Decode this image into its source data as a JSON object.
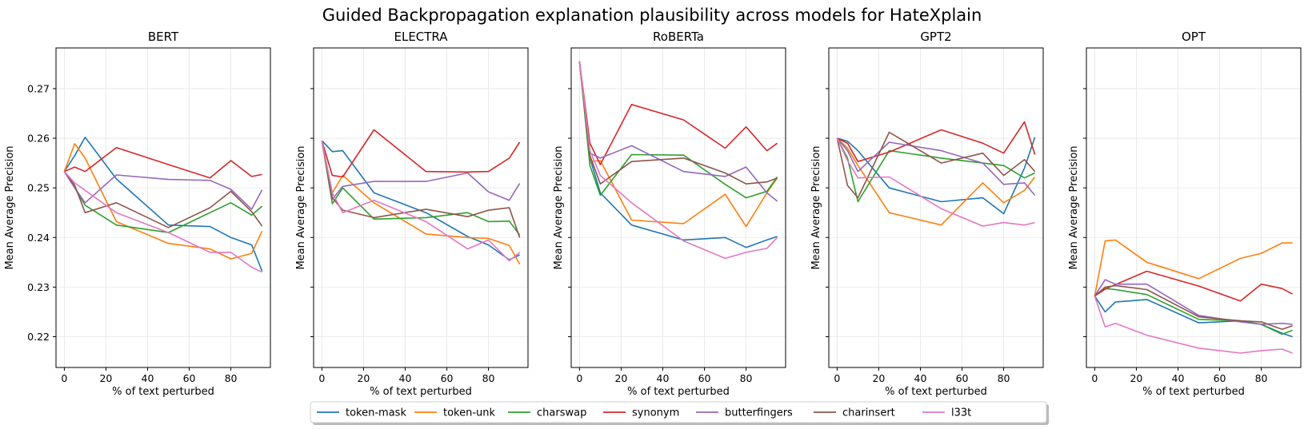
{
  "suptitle": "Guided Backpropagation explanation plausibility across models for HateXplain",
  "chart_data": {
    "type": "line",
    "x": [
      0,
      5,
      10,
      25,
      50,
      70,
      80,
      90,
      95
    ],
    "xlabel": "% of text perturbed",
    "ylabel": "Mean Average Precision",
    "xticks": [
      0,
      20,
      40,
      60,
      80
    ],
    "yticks": [
      0.22,
      0.23,
      0.24,
      0.25,
      0.26,
      0.27
    ],
    "xlim": [
      -4,
      99
    ],
    "ylim": [
      0.2138,
      0.2782
    ],
    "grid": true,
    "legend_position": "bottom-center",
    "colors": {
      "token-mask": "#1f77b4",
      "token-unk": "#ff7f0e",
      "charswap": "#2ca02c",
      "synonym": "#d62728",
      "butterfingers": "#9467bd",
      "charinsert": "#8c564b",
      "l33t": "#e377c2"
    },
    "legend": [
      "token-mask",
      "token-unk",
      "charswap",
      "synonym",
      "butterfingers",
      "charinsert",
      "l33t"
    ],
    "panels": [
      {
        "title": "BERT",
        "series": [
          {
            "name": "token-mask",
            "values": [
              0.2533,
              0.2565,
              0.2602,
              0.2518,
              0.2425,
              0.2422,
              0.24,
              0.2385,
              0.2332
            ]
          },
          {
            "name": "token-unk",
            "values": [
              0.2533,
              0.2589,
              0.256,
              0.2432,
              0.2388,
              0.2377,
              0.2357,
              0.2368,
              0.2413
            ]
          },
          {
            "name": "charswap",
            "values": [
              0.2533,
              0.25,
              0.2465,
              0.2425,
              0.241,
              0.245,
              0.247,
              0.2445,
              0.2463
            ]
          },
          {
            "name": "synonym",
            "values": [
              0.2533,
              0.2542,
              0.2533,
              0.2581,
              0.2547,
              0.252,
              0.2555,
              0.2523,
              0.2527
            ]
          },
          {
            "name": "butterfingers",
            "values": [
              0.2533,
              0.25,
              0.247,
              0.2526,
              0.2517,
              0.2515,
              0.2497,
              0.2457,
              0.2496
            ]
          },
          {
            "name": "charinsert",
            "values": [
              0.2533,
              0.2505,
              0.245,
              0.247,
              0.242,
              0.246,
              0.2493,
              0.2452,
              0.2423
            ]
          },
          {
            "name": "l33t",
            "values": [
              0.2533,
              0.251,
              0.2495,
              0.245,
              0.241,
              0.237,
              0.237,
              0.234,
              0.233
            ]
          }
        ]
      },
      {
        "title": "ELECTRA",
        "series": [
          {
            "name": "token-mask",
            "values": [
              0.2595,
              0.2573,
              0.2575,
              0.249,
              0.245,
              0.2402,
              0.2385,
              0.2355,
              0.2365
            ]
          },
          {
            "name": "token-unk",
            "values": [
              0.2595,
              0.249,
              0.2525,
              0.247,
              0.2407,
              0.24,
              0.2398,
              0.2384,
              0.2346
            ]
          },
          {
            "name": "charswap",
            "values": [
              0.2595,
              0.2468,
              0.25,
              0.2437,
              0.244,
              0.245,
              0.2432,
              0.2433,
              0.2405
            ]
          },
          {
            "name": "synonym",
            "values": [
              0.2595,
              0.2525,
              0.2522,
              0.2617,
              0.2533,
              0.2532,
              0.2533,
              0.256,
              0.2592
            ]
          },
          {
            "name": "butterfingers",
            "values": [
              0.2595,
              0.2477,
              0.2503,
              0.2513,
              0.2513,
              0.253,
              0.2492,
              0.2475,
              0.2509
            ]
          },
          {
            "name": "charinsert",
            "values": [
              0.2595,
              0.248,
              0.2455,
              0.244,
              0.2457,
              0.2442,
              0.2455,
              0.246,
              0.24
            ]
          },
          {
            "name": "l33t",
            "values": [
              0.2595,
              0.249,
              0.245,
              0.2475,
              0.2432,
              0.2377,
              0.2395,
              0.2353,
              0.237
            ]
          }
        ]
      },
      {
        "title": "RoBERTa",
        "series": [
          {
            "name": "token-mask",
            "values": [
              0.2755,
              0.256,
              0.249,
              0.2425,
              0.2395,
              0.24,
              0.238,
              0.2395,
              0.2402
            ]
          },
          {
            "name": "token-unk",
            "values": [
              0.2755,
              0.2553,
              0.2555,
              0.2435,
              0.2428,
              0.2487,
              0.2422,
              0.249,
              0.252
            ]
          },
          {
            "name": "charswap",
            "values": [
              0.2755,
              0.2545,
              0.2485,
              0.2567,
              0.2566,
              0.2507,
              0.248,
              0.2493,
              0.2522
            ]
          },
          {
            "name": "synonym",
            "values": [
              0.2755,
              0.259,
              0.2547,
              0.2668,
              0.2637,
              0.258,
              0.2623,
              0.2575,
              0.259
            ]
          },
          {
            "name": "butterfingers",
            "values": [
              0.2755,
              0.257,
              0.256,
              0.2585,
              0.2533,
              0.2523,
              0.2542,
              0.249,
              0.2473
            ]
          },
          {
            "name": "charinsert",
            "values": [
              0.2755,
              0.2565,
              0.2508,
              0.2553,
              0.256,
              0.253,
              0.2508,
              0.2512,
              0.252
            ]
          },
          {
            "name": "l33t",
            "values": [
              0.2755,
              0.2575,
              0.2525,
              0.247,
              0.2393,
              0.2358,
              0.237,
              0.2378,
              0.24
            ]
          }
        ]
      },
      {
        "title": "GPT2",
        "series": [
          {
            "name": "token-mask",
            "values": [
              0.26,
              0.2594,
              0.2575,
              0.25,
              0.2472,
              0.248,
              0.2448,
              0.254,
              0.2602
            ]
          },
          {
            "name": "token-unk",
            "values": [
              0.26,
              0.258,
              0.2545,
              0.245,
              0.2425,
              0.251,
              0.247,
              0.2495,
              0.2522
            ]
          },
          {
            "name": "charswap",
            "values": [
              0.26,
              0.256,
              0.2472,
              0.2575,
              0.256,
              0.255,
              0.2545,
              0.252,
              0.253
            ]
          },
          {
            "name": "synonym",
            "values": [
              0.26,
              0.259,
              0.2553,
              0.2572,
              0.2617,
              0.259,
              0.257,
              0.2633,
              0.2567
            ]
          },
          {
            "name": "butterfingers",
            "values": [
              0.26,
              0.2575,
              0.2533,
              0.2592,
              0.2575,
              0.255,
              0.2507,
              0.251,
              0.2485
            ]
          },
          {
            "name": "charinsert",
            "values": [
              0.26,
              0.2505,
              0.248,
              0.2612,
              0.255,
              0.257,
              0.2525,
              0.2557,
              0.2533
            ]
          },
          {
            "name": "l33t",
            "values": [
              0.26,
              0.2555,
              0.252,
              0.2522,
              0.2458,
              0.2423,
              0.243,
              0.2425,
              0.243
            ]
          }
        ]
      },
      {
        "title": "OPT",
        "series": [
          {
            "name": "token-mask",
            "values": [
              0.2282,
              0.225,
              0.227,
              0.2275,
              0.2228,
              0.2232,
              0.2225,
              0.2207,
              0.22
            ]
          },
          {
            "name": "token-unk",
            "values": [
              0.2282,
              0.2393,
              0.2395,
              0.235,
              0.2317,
              0.2358,
              0.2368,
              0.2389,
              0.2389
            ]
          },
          {
            "name": "charswap",
            "values": [
              0.2282,
              0.2297,
              0.2295,
              0.2285,
              0.2235,
              0.2232,
              0.2225,
              0.2205,
              0.2213
            ]
          },
          {
            "name": "synonym",
            "values": [
              0.2282,
              0.2296,
              0.2305,
              0.2332,
              0.2302,
              0.2272,
              0.2306,
              0.2297,
              0.2286
            ]
          },
          {
            "name": "butterfingers",
            "values": [
              0.2282,
              0.2315,
              0.2306,
              0.2306,
              0.2243,
              0.223,
              0.2225,
              0.2227,
              0.2225
            ]
          },
          {
            "name": "charinsert",
            "values": [
              0.2282,
              0.23,
              0.2303,
              0.2295,
              0.224,
              0.2232,
              0.223,
              0.2215,
              0.2222
            ]
          },
          {
            "name": "l33t",
            "values": [
              0.2282,
              0.222,
              0.2227,
              0.2203,
              0.2177,
              0.2167,
              0.2172,
              0.2175,
              0.2167
            ]
          }
        ]
      }
    ]
  }
}
